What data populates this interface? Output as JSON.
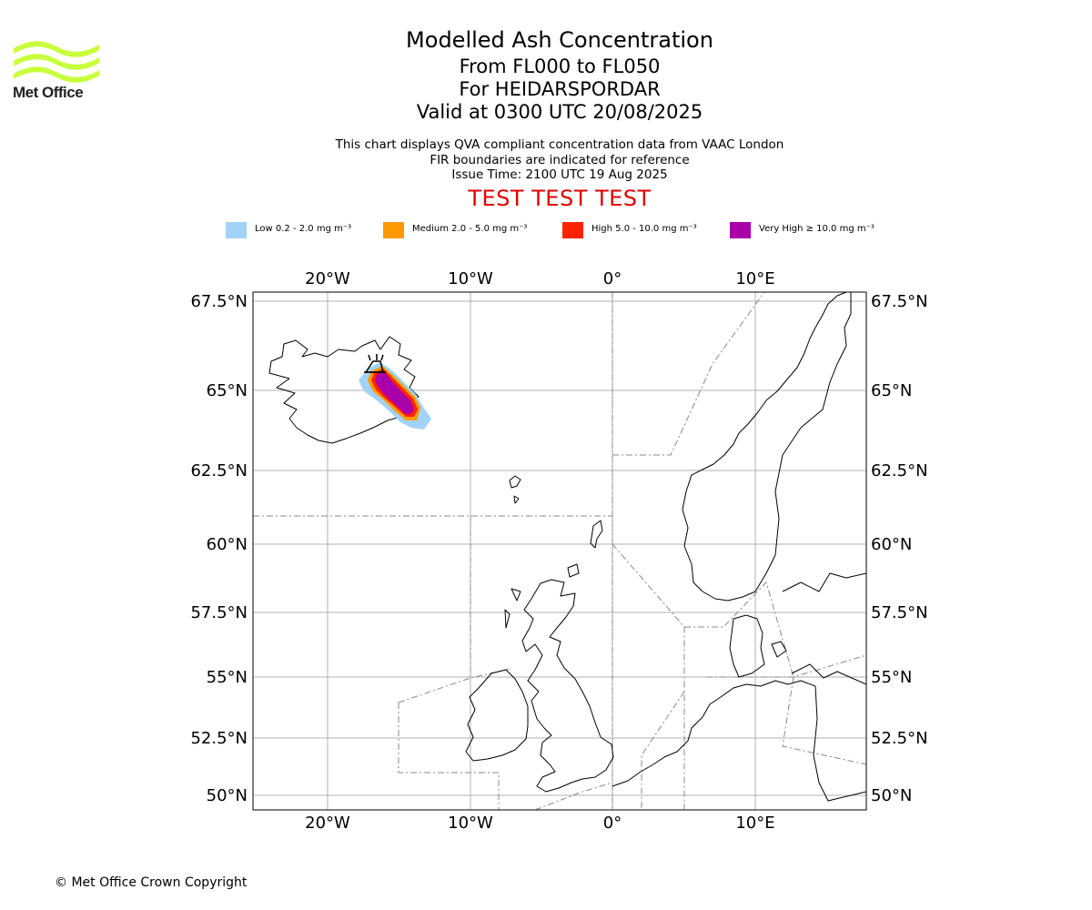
{
  "logo": {
    "brand": "Met Office",
    "color": "#c8ff3c"
  },
  "header": {
    "title": "Modelled Ash Concentration",
    "level_range": "From FL000 to FL050",
    "volcano": "For HEIDARSPORDAR",
    "valid_time": "Valid at 0300 UTC 20/08/2025",
    "description": "This chart displays QVA compliant concentration data from VAAC London",
    "fir_note": "FIR boundaries are indicated for reference",
    "issue_time": "Issue Time: 2100 UTC 19 Aug 2025",
    "test_banner": "TEST TEST TEST"
  },
  "legend": [
    {
      "label": "Low 0.2 - 2.0 mg m⁻³",
      "color": "#a0d2fa"
    },
    {
      "label": "Medium 2.0 - 5.0 mg m⁻³",
      "color": "#ff9900"
    },
    {
      "label": "High 5.0 - 10.0 mg m⁻³",
      "color": "#ff2200"
    },
    {
      "label": "Very High ≥ 10.0 mg m⁻³",
      "color": "#aa00aa"
    }
  ],
  "map": {
    "lon_ticks": [
      "20°W",
      "10°W",
      "0°",
      "10°E"
    ],
    "lat_ticks": [
      "67.5°N",
      "65°N",
      "62.5°N",
      "60°N",
      "57.5°N",
      "55°N",
      "52.5°N",
      "50°N"
    ]
  },
  "footer": {
    "copyright": "© Met Office Crown Copyright"
  }
}
